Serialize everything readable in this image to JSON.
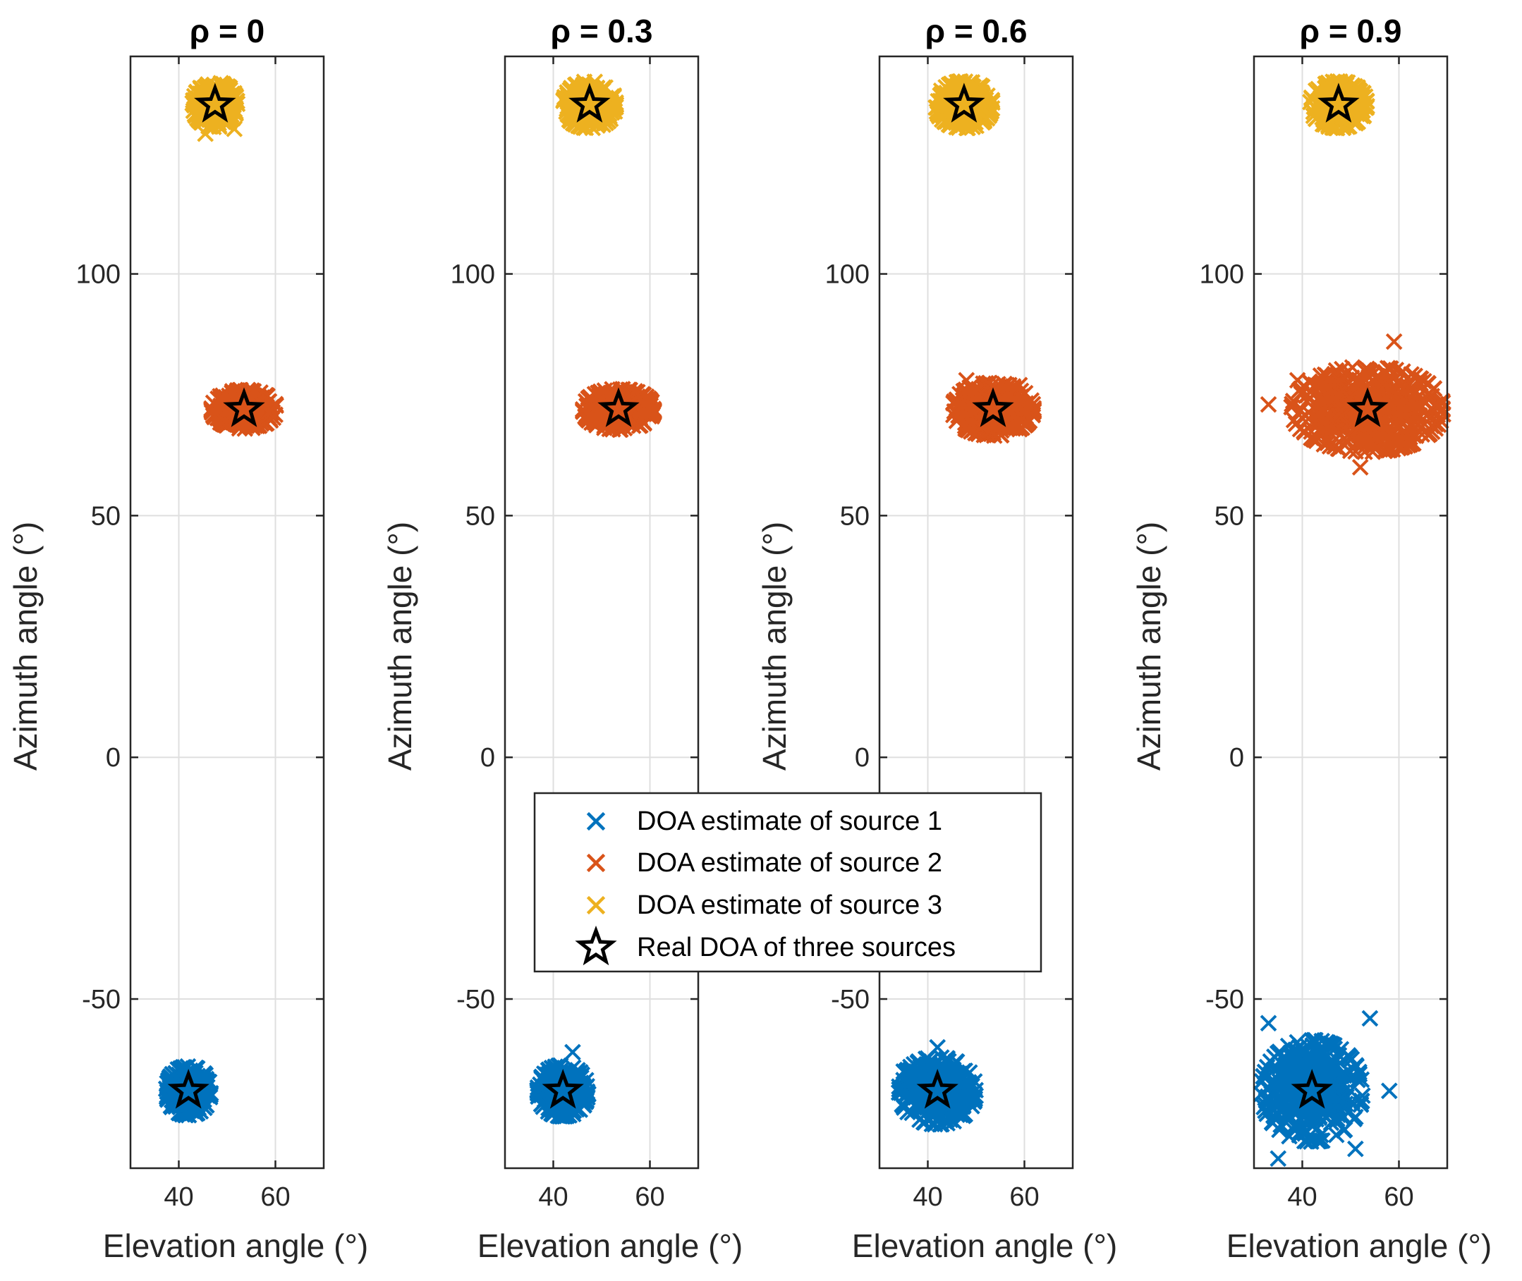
{
  "chart_data": [
    {
      "type": "scatter",
      "title": "ρ = 0",
      "xlabel": "Elevation angle (°)",
      "ylabel": "Azimuth angle (°)",
      "xlim": [
        30,
        70
      ],
      "ylim": [
        -85,
        145
      ],
      "xticks": [
        40,
        60
      ],
      "yticks": [
        -50,
        0,
        50,
        100
      ],
      "grid": true,
      "series": [
        {
          "name": "DOA estimate of source 1",
          "center": [
            42,
            -69
          ],
          "spread": [
            2.2,
            2.4
          ],
          "outliers": []
        },
        {
          "name": "DOA estimate of source 2",
          "center": [
            53.5,
            72
          ],
          "spread": [
            3.2,
            1.9
          ],
          "outliers": []
        },
        {
          "name": "DOA estimate of source 3",
          "center": [
            47.5,
            135
          ],
          "spread": [
            2.2,
            2.2
          ],
          "outliers": [
            [
              45.5,
              129
            ],
            [
              51.5,
              130
            ]
          ]
        }
      ],
      "real_doa": [
        [
          42,
          -69
        ],
        [
          53.5,
          72
        ],
        [
          47.5,
          135
        ]
      ]
    },
    {
      "type": "scatter",
      "title": "ρ = 0.3",
      "xlabel": "Elevation angle (°)",
      "ylabel": "Azimuth angle (°)",
      "xlim": [
        30,
        70
      ],
      "ylim": [
        -85,
        145
      ],
      "xticks": [
        40,
        60
      ],
      "yticks": [
        -50,
        0,
        50,
        100
      ],
      "grid": true,
      "series": [
        {
          "name": "DOA estimate of source 1",
          "center": [
            42,
            -69
          ],
          "spread": [
            2.5,
            2.5
          ],
          "outliers": [
            [
              44,
              -61
            ]
          ]
        },
        {
          "name": "DOA estimate of source 2",
          "center": [
            53.5,
            72
          ],
          "spread": [
            3.5,
            2.0
          ],
          "outliers": []
        },
        {
          "name": "DOA estimate of source 3",
          "center": [
            47.5,
            135
          ],
          "spread": [
            2.6,
            2.3
          ],
          "outliers": [
            [
              43,
              133
            ]
          ]
        }
      ],
      "real_doa": [
        [
          42,
          -69
        ],
        [
          53.5,
          72
        ],
        [
          47.5,
          135
        ]
      ]
    },
    {
      "type": "scatter",
      "title": "ρ = 0.6",
      "xlabel": "Elevation angle (°)",
      "ylabel": "Azimuth angle (°)",
      "xlim": [
        30,
        70
      ],
      "ylim": [
        -85,
        145
      ],
      "xticks": [
        40,
        60
      ],
      "yticks": [
        -50,
        0,
        50,
        100
      ],
      "grid": true,
      "series": [
        {
          "name": "DOA estimate of source 1",
          "center": [
            42,
            -69
          ],
          "spread": [
            3.8,
            3.3
          ],
          "outliers": [
            [
              42,
              -60
            ],
            [
              35,
              -65
            ]
          ]
        },
        {
          "name": "DOA estimate of source 2",
          "center": [
            53.5,
            72
          ],
          "spread": [
            4.0,
            2.6
          ],
          "outliers": [
            [
              48,
              78
            ],
            [
              59,
              77
            ]
          ]
        },
        {
          "name": "DOA estimate of source 3",
          "center": [
            47.5,
            135
          ],
          "spread": [
            2.8,
            2.3
          ],
          "outliers": [
            [
              52,
              136
            ]
          ]
        }
      ],
      "real_doa": [
        [
          42,
          -69
        ],
        [
          53.5,
          72
        ],
        [
          47.5,
          135
        ]
      ]
    },
    {
      "type": "scatter",
      "title": "ρ = 0.9",
      "xlabel": "Elevation angle (°)",
      "ylabel": "Azimuth angle (°)",
      "xlim": [
        30,
        70
      ],
      "ylim": [
        -85,
        145
      ],
      "xticks": [
        40,
        60
      ],
      "yticks": [
        -50,
        0,
        50,
        100
      ],
      "grid": true,
      "series": [
        {
          "name": "DOA estimate of source 1",
          "center": [
            42,
            -69
          ],
          "spread": [
            5.0,
            5.0
          ],
          "outliers": [
            [
              33,
              -55
            ],
            [
              54,
              -54
            ],
            [
              35,
              -83
            ],
            [
              51,
              -81
            ],
            [
              58,
              -69
            ]
          ]
        },
        {
          "name": "DOA estimate of source 2",
          "center": [
            53.5,
            72
          ],
          "spread": [
            7.5,
            4.2
          ],
          "outliers": [
            [
              39,
              78
            ],
            [
              59,
              86
            ],
            [
              33,
              73
            ],
            [
              69,
              72
            ],
            [
              52,
              60
            ]
          ]
        },
        {
          "name": "DOA estimate of source 3",
          "center": [
            47.5,
            135
          ],
          "spread": [
            2.8,
            2.3
          ],
          "outliers": []
        }
      ],
      "real_doa": [
        [
          42,
          -69
        ],
        [
          53.5,
          72
        ],
        [
          47.5,
          135
        ]
      ]
    }
  ],
  "colors": {
    "source1": "#0072BD",
    "source2": "#D95319",
    "source3": "#EDB120",
    "star": "#000000",
    "grid": "#dfdfdf",
    "axis": "#262626"
  },
  "legend": {
    "location": "center",
    "entries": [
      {
        "label": "DOA estimate of source 1",
        "marker": "x",
        "color": "#0072BD"
      },
      {
        "label": "DOA estimate of source 2",
        "marker": "x",
        "color": "#D95319"
      },
      {
        "label": "DOA estimate of source 3",
        "marker": "x",
        "color": "#EDB120"
      },
      {
        "label": "Real DOA of three sources",
        "marker": "star",
        "color": "#000000"
      }
    ]
  }
}
